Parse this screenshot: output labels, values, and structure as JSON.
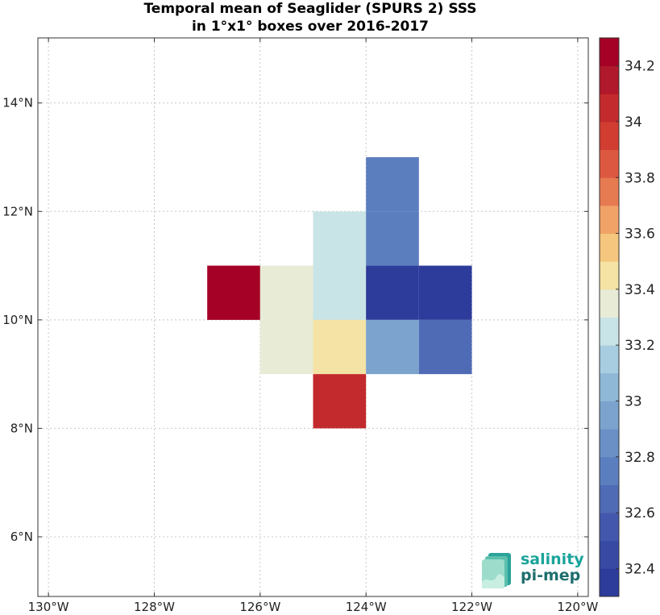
{
  "chart_data": {
    "type": "heatmap",
    "title": "Temporal mean of Seaglider (SPURS 2) SSS",
    "subtitle": "in 1°x1° boxes over 2016-2017",
    "xlim": [
      -130.2,
      -119.8
    ],
    "ylim": [
      4.9,
      15.2
    ],
    "x_ticks": [
      -130,
      -128,
      -126,
      -124,
      -122,
      -120
    ],
    "x_tick_labels": [
      "130°W",
      "128°W",
      "126°W",
      "124°W",
      "122°W",
      "120°W"
    ],
    "y_ticks": [
      6,
      8,
      10,
      12,
      14
    ],
    "y_tick_labels": [
      "6°N",
      "8°N",
      "10°N",
      "12°N",
      "14°N"
    ],
    "grid": true,
    "cells": [
      {
        "lon": [
          -127,
          -126
        ],
        "lat": [
          10,
          11
        ],
        "value": 34.25
      },
      {
        "lon": [
          -126,
          -125
        ],
        "lat": [
          10,
          11
        ],
        "value": 33.35
      },
      {
        "lon": [
          -126,
          -125
        ],
        "lat": [
          9,
          10
        ],
        "value": 33.35
      },
      {
        "lon": [
          -125,
          -124
        ],
        "lat": [
          11,
          12
        ],
        "value": 33.25
      },
      {
        "lon": [
          -125,
          -124
        ],
        "lat": [
          10,
          11
        ],
        "value": 33.25
      },
      {
        "lon": [
          -125,
          -124
        ],
        "lat": [
          9,
          10
        ],
        "value": 33.45
      },
      {
        "lon": [
          -125,
          -124
        ],
        "lat": [
          8,
          9
        ],
        "value": 34.05
      },
      {
        "lon": [
          -124,
          -123
        ],
        "lat": [
          12,
          13
        ],
        "value": 32.75
      },
      {
        "lon": [
          -124,
          -123
        ],
        "lat": [
          11,
          12
        ],
        "value": 32.75
      },
      {
        "lon": [
          -124,
          -123
        ],
        "lat": [
          10,
          11
        ],
        "value": 32.35
      },
      {
        "lon": [
          -123,
          -122
        ],
        "lat": [
          10,
          11
        ],
        "value": 32.35
      },
      {
        "lon": [
          -124,
          -123
        ],
        "lat": [
          9,
          10
        ],
        "value": 32.95
      },
      {
        "lon": [
          -123,
          -122
        ],
        "lat": [
          9,
          10
        ],
        "value": 32.65
      }
    ],
    "colorbar": {
      "min": 32.3,
      "max": 34.3,
      "ticks": [
        32.4,
        32.6,
        32.8,
        33,
        33.2,
        33.4,
        33.6,
        33.8,
        34,
        34.2
      ],
      "tick_labels": [
        "32.4",
        "32.6",
        "32.8",
        "33",
        "33.2",
        "33.4",
        "33.6",
        "33.8",
        "34",
        "34.2"
      ],
      "colors": [
        "#2d3b9b",
        "#3749a3",
        "#4358ac",
        "#4f6bb5",
        "#5b7ebf",
        "#6a90c6",
        "#7ba3cd",
        "#8fb8d6",
        "#a8cde0",
        "#c9e4e6",
        "#e8ebd6",
        "#f4e3a4",
        "#f5c77e",
        "#f1a267",
        "#e67b52",
        "#dd5840",
        "#d13d31",
        "#c22a2d",
        "#b0182b",
        "#a50026"
      ]
    }
  },
  "logo": {
    "line1": "salinity",
    "line2": "pi-mep"
  }
}
